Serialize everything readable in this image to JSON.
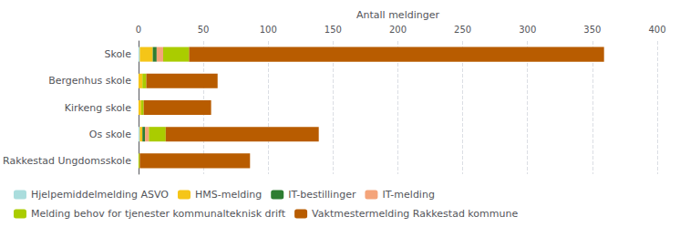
{
  "chart_data": {
    "type": "bar",
    "orientation": "horizontal",
    "stacked": true,
    "categories": [
      "Skole",
      "Bergenhus skole",
      "Kirkeng skole",
      "Os skole",
      "Rakkestad Ungdomsskole"
    ],
    "series": [
      {
        "name": "Hjelpemiddelmelding ASVO",
        "color": "#aadddd",
        "values": [
          1,
          0,
          0,
          1,
          0
        ]
      },
      {
        "name": "HMS-melding",
        "color": "#f5c518",
        "values": [
          10,
          3,
          2,
          2,
          0
        ]
      },
      {
        "name": "IT-bestillinger",
        "color": "#2e7d32",
        "values": [
          3,
          0,
          0,
          2,
          0
        ]
      },
      {
        "name": "IT-melding",
        "color": "#f4a47a",
        "values": [
          5,
          0,
          0,
          3,
          0
        ]
      },
      {
        "name": "Melding behov for tjenester kommunalteknisk drift",
        "color": "#aacc00",
        "values": [
          20,
          3,
          2,
          13,
          1
        ]
      },
      {
        "name": "Vaktmestermelding Rakkestad kommune",
        "color": "#b85c00",
        "values": [
          320,
          55,
          52,
          118,
          85
        ]
      }
    ],
    "xlabel": "Antall meldinger",
    "xlim": [
      0,
      400
    ],
    "xticks": [
      0,
      50,
      100,
      150,
      200,
      250,
      300,
      350,
      400
    ],
    "grid": true,
    "legend": "bottom"
  }
}
